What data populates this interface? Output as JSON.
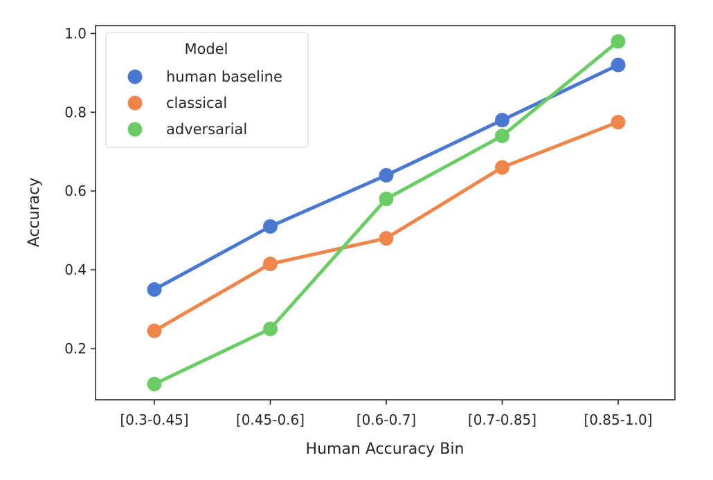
{
  "chart_data": {
    "type": "line",
    "title": "",
    "xlabel": "Human Accuracy Bin",
    "ylabel": "Accuracy",
    "categories": [
      "[0.3-0.45]",
      "[0.45-0.6]",
      "[0.6-0.7]",
      "[0.7-0.85]",
      "[0.85-1.0]"
    ],
    "yticks": [
      "0.2",
      "0.4",
      "0.6",
      "0.8",
      "1.0"
    ],
    "ylim": [
      0.07,
      1.02
    ],
    "grid": false,
    "legend": {
      "title": "Model",
      "placement": "top-left"
    },
    "series": [
      {
        "name": "human baseline",
        "color": "#4878d0",
        "values": [
          0.35,
          0.51,
          0.64,
          0.78,
          0.92
        ]
      },
      {
        "name": "classical",
        "color": "#ee854a",
        "values": [
          0.245,
          0.415,
          0.48,
          0.66,
          0.775
        ]
      },
      {
        "name": "adversarial",
        "color": "#6acc64",
        "values": [
          0.11,
          0.25,
          0.58,
          0.74,
          0.98
        ]
      }
    ]
  }
}
